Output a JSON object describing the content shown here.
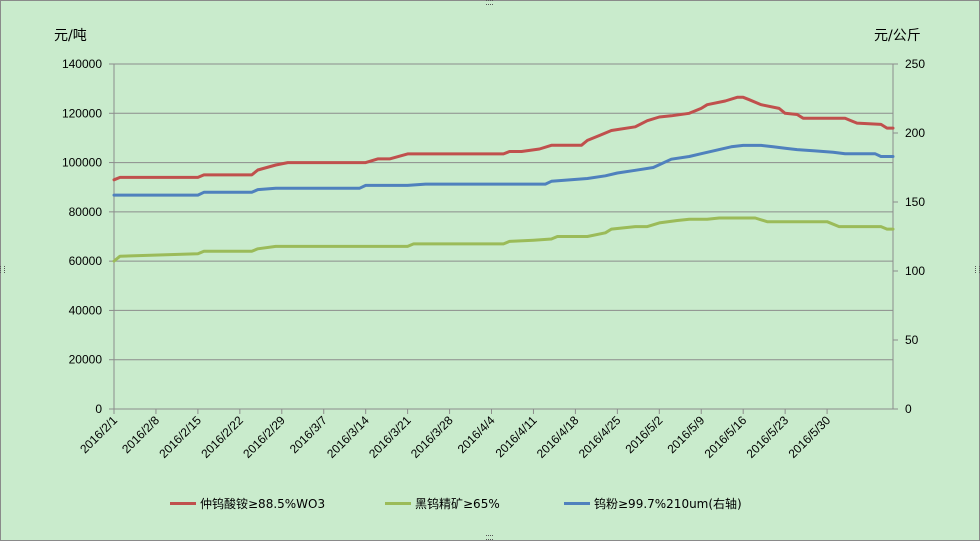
{
  "chart_data": {
    "type": "line",
    "y_left_unit": "元/吨",
    "y_right_unit": "元/公斤",
    "y_left_ticks": [
      "0",
      "20000",
      "40000",
      "60000",
      "80000",
      "100000",
      "120000",
      "140000"
    ],
    "y_right_ticks": [
      "0",
      "50",
      "100",
      "150",
      "200",
      "250"
    ],
    "x_tick_labels": [
      "2016/2/1",
      "2016/2/8",
      "2016/2/15",
      "2016/2/22",
      "2016/2/29",
      "2016/3/7",
      "2016/3/14",
      "2016/3/21",
      "2016/3/28",
      "2016/4/4",
      "2016/4/11",
      "2016/4/18",
      "2016/4/25",
      "2016/5/2",
      "2016/5/9",
      "2016/5/16",
      "2016/5/23",
      "2016/5/30"
    ],
    "ylim_left": [
      0,
      140000
    ],
    "ylim_right": [
      0,
      250
    ],
    "grid": true,
    "legend_position": "bottom",
    "series": [
      {
        "name": "仲钨酸铵≥88.5%WO3",
        "axis": "left",
        "color": "#c0504d",
        "points": [
          [
            "2016/2/1",
            93000
          ],
          [
            "2016/2/2",
            94000
          ],
          [
            "2016/2/15",
            94000
          ],
          [
            "2016/2/16",
            95000
          ],
          [
            "2016/2/24",
            95000
          ],
          [
            "2016/2/25",
            97000
          ],
          [
            "2016/2/28",
            99000
          ],
          [
            "2016/3/1",
            100000
          ],
          [
            "2016/3/14",
            100000
          ],
          [
            "2016/3/16",
            101500
          ],
          [
            "2016/3/18",
            101500
          ],
          [
            "2016/3/21",
            103500
          ],
          [
            "2016/4/6",
            103500
          ],
          [
            "2016/4/7",
            104500
          ],
          [
            "2016/4/9",
            104500
          ],
          [
            "2016/4/12",
            105500
          ],
          [
            "2016/4/14",
            107000
          ],
          [
            "2016/4/19",
            107000
          ],
          [
            "2016/4/20",
            109000
          ],
          [
            "2016/4/22",
            111000
          ],
          [
            "2016/4/24",
            113000
          ],
          [
            "2016/4/28",
            114500
          ],
          [
            "2016/4/30",
            117000
          ],
          [
            "2016/5/2",
            118500
          ],
          [
            "2016/5/4",
            119000
          ],
          [
            "2016/5/7",
            120000
          ],
          [
            "2016/5/9",
            122000
          ],
          [
            "2016/5/10",
            123500
          ],
          [
            "2016/5/13",
            125000
          ],
          [
            "2016/5/15",
            126500
          ],
          [
            "2016/5/16",
            126500
          ],
          [
            "2016/5/17",
            125500
          ],
          [
            "2016/5/19",
            123500
          ],
          [
            "2016/5/22",
            122000
          ],
          [
            "2016/5/23",
            120000
          ],
          [
            "2016/5/25",
            119500
          ],
          [
            "2016/5/26",
            118000
          ],
          [
            "2016/6/2",
            118000
          ],
          [
            "2016/6/3",
            117000
          ],
          [
            "2016/6/4",
            116000
          ],
          [
            "2016/6/8",
            115500
          ],
          [
            "2016/6/9",
            114000
          ],
          [
            "2016/6/10",
            114000
          ]
        ]
      },
      {
        "name": "黑钨精矿≥65%",
        "axis": "left",
        "color": "#9bbb59",
        "points": [
          [
            "2016/2/1",
            60000
          ],
          [
            "2016/2/2",
            62000
          ],
          [
            "2016/2/15",
            63000
          ],
          [
            "2016/2/16",
            64000
          ],
          [
            "2016/2/24",
            64000
          ],
          [
            "2016/2/25",
            65000
          ],
          [
            "2016/2/28",
            66000
          ],
          [
            "2016/3/21",
            66000
          ],
          [
            "2016/3/22",
            67000
          ],
          [
            "2016/4/6",
            67000
          ],
          [
            "2016/4/7",
            68000
          ],
          [
            "2016/4/11",
            68500
          ],
          [
            "2016/4/14",
            69000
          ],
          [
            "2016/4/15",
            70000
          ],
          [
            "2016/4/20",
            70000
          ],
          [
            "2016/4/23",
            71500
          ],
          [
            "2016/4/24",
            73000
          ],
          [
            "2016/4/28",
            74000
          ],
          [
            "2016/4/30",
            74000
          ],
          [
            "2016/5/2",
            75500
          ],
          [
            "2016/5/5",
            76500
          ],
          [
            "2016/5/7",
            77000
          ],
          [
            "2016/5/10",
            77000
          ],
          [
            "2016/5/12",
            77500
          ],
          [
            "2016/5/16",
            77500
          ],
          [
            "2016/5/18",
            77500
          ],
          [
            "2016/5/20",
            76000
          ],
          [
            "2016/5/27",
            76000
          ],
          [
            "2016/5/30",
            76000
          ],
          [
            "2016/6/1",
            74000
          ],
          [
            "2016/6/3",
            74000
          ],
          [
            "2016/6/8",
            74000
          ],
          [
            "2016/6/9",
            73000
          ],
          [
            "2016/6/10",
            73000
          ]
        ]
      },
      {
        "name": "钨粉≥99.7%210um(右轴)",
        "axis": "right",
        "color": "#4f81bd",
        "points": [
          [
            "2016/2/1",
            155
          ],
          [
            "2016/2/15",
            155
          ],
          [
            "2016/2/16",
            157
          ],
          [
            "2016/2/24",
            157
          ],
          [
            "2016/2/25",
            159
          ],
          [
            "2016/2/28",
            160
          ],
          [
            "2016/3/13",
            160
          ],
          [
            "2016/3/14",
            162
          ],
          [
            "2016/3/21",
            162
          ],
          [
            "2016/3/24",
            163
          ],
          [
            "2016/4/13",
            163
          ],
          [
            "2016/4/14",
            165
          ],
          [
            "2016/4/17",
            166
          ],
          [
            "2016/4/20",
            167
          ],
          [
            "2016/4/23",
            169
          ],
          [
            "2016/4/25",
            171
          ],
          [
            "2016/4/28",
            173
          ],
          [
            "2016/5/1",
            175
          ],
          [
            "2016/5/4",
            181
          ],
          [
            "2016/5/7",
            183
          ],
          [
            "2016/5/9",
            185
          ],
          [
            "2016/5/11",
            187
          ],
          [
            "2016/5/14",
            190
          ],
          [
            "2016/5/16",
            191
          ],
          [
            "2016/5/19",
            191
          ],
          [
            "2016/5/21",
            190
          ],
          [
            "2016/5/23",
            189
          ],
          [
            "2016/5/25",
            188
          ],
          [
            "2016/5/28",
            187
          ],
          [
            "2016/5/31",
            186
          ],
          [
            "2016/6/2",
            185
          ],
          [
            "2016/6/7",
            185
          ],
          [
            "2016/6/8",
            183
          ],
          [
            "2016/6/10",
            183
          ]
        ]
      }
    ]
  }
}
